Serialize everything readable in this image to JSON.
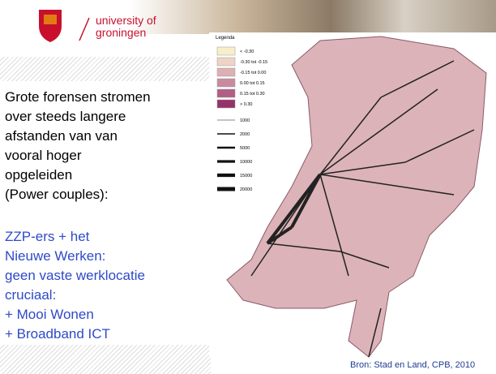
{
  "header": {
    "logo_lines": [
      "university of",
      "groningen"
    ]
  },
  "body": {
    "black_lines": [
      "Grote forensen stromen",
      "over steeds langere",
      "afstanden van van",
      "vooral hoger",
      "opgeleiden",
      "(Power couples):"
    ],
    "blue_lines": [
      "ZZP-ers + het",
      "Nieuwe Werken:",
      "geen vaste werklocatie",
      "cruciaal:",
      "+ Mooi Wonen",
      "+ Broadband ICT"
    ]
  },
  "map": {
    "legend": {
      "title": "Legenda",
      "fill_items": [
        {
          "label": "< -0.30",
          "color": "#f7efc9"
        },
        {
          "label": "-0.30 tot -0.15",
          "color": "#efd3c4"
        },
        {
          "label": "-0.15 tot 0.00",
          "color": "#ddb0b4"
        },
        {
          "label": "0.00 tot 0.15",
          "color": "#c98aa0"
        },
        {
          "label": "0.15 tot 0.30",
          "color": "#b25f86"
        },
        {
          "label": "> 0.30",
          "color": "#94336a"
        }
      ],
      "line_items": [
        "1000",
        "2000",
        "5000",
        "10000",
        "15000",
        "20000"
      ]
    }
  },
  "source": "Bron: Stad en Land, CPB, 2010"
}
